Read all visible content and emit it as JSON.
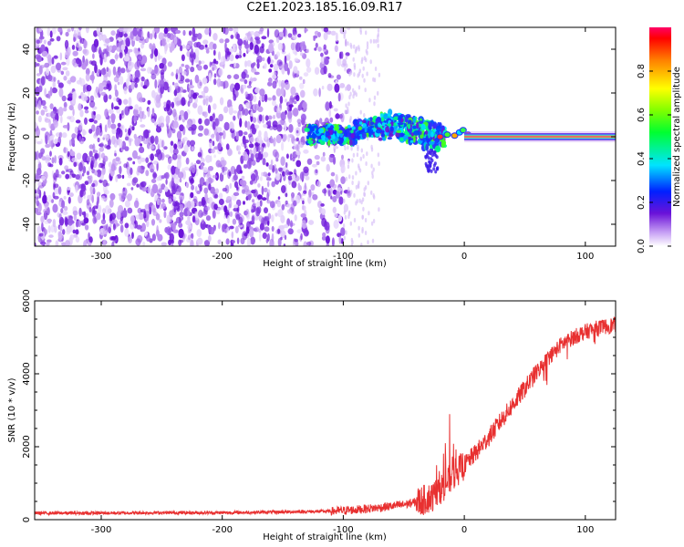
{
  "title": "C2E1.2023.185.16.09.R17",
  "colors": {
    "line": "#e83030",
    "frame": "#000000",
    "background": "#ffffff"
  },
  "chart_data": [
    {
      "type": "heatmap",
      "name": "spectrogram",
      "xlabel": "Height of straight line (km)",
      "ylabel": "Frequency (Hz)",
      "xlim": [
        -355,
        125
      ],
      "ylim": [
        -50,
        50
      ],
      "xticks": [
        -300,
        -200,
        -100,
        0,
        100
      ],
      "yticks": [
        -40,
        -20,
        0,
        20,
        40
      ],
      "description_regions": [
        {
          "x_from": -355,
          "x_to": -100,
          "freq_from": -50,
          "freq_to": 50,
          "amplitude": 0.1
        },
        {
          "x_from": -130,
          "x_to": -15,
          "freq_from": -5,
          "freq_to": 10,
          "amplitude": 0.3
        },
        {
          "x_from": 0,
          "x_to": 125,
          "freq_from": -1,
          "freq_to": 1,
          "amplitude": 0.9
        }
      ],
      "colorbar": {
        "label": "Normalized spectral amplitude",
        "range": [
          0,
          1
        ],
        "ticks": [
          "0.0",
          "0.2",
          "0.4",
          "0.6",
          "0.8"
        ]
      }
    },
    {
      "type": "line",
      "name": "snr",
      "xlabel": "Height of straight line (km)",
      "ylabel": "SNR (10 * v/v)",
      "xlim": [
        -355,
        125
      ],
      "ylim": [
        0,
        6000
      ],
      "xticks": [
        -300,
        -200,
        -100,
        0,
        100
      ],
      "yticks": [
        0,
        2000,
        4000,
        6000
      ],
      "series": [
        {
          "name": "SNR",
          "x": [
            -355,
            -300,
            -250,
            -200,
            -150,
            -110,
            -90,
            -70,
            -50,
            -35,
            -25,
            -15,
            -8,
            0,
            10,
            20,
            30,
            40,
            50,
            60,
            70,
            80,
            90,
            100,
            110,
            125
          ],
          "values": [
            180,
            180,
            190,
            190,
            210,
            230,
            270,
            330,
            410,
            520,
            650,
            1000,
            1250,
            1500,
            1850,
            2250,
            2700,
            3150,
            3600,
            4050,
            4450,
            4800,
            5000,
            5150,
            5250,
            5350
          ]
        }
      ]
    }
  ]
}
